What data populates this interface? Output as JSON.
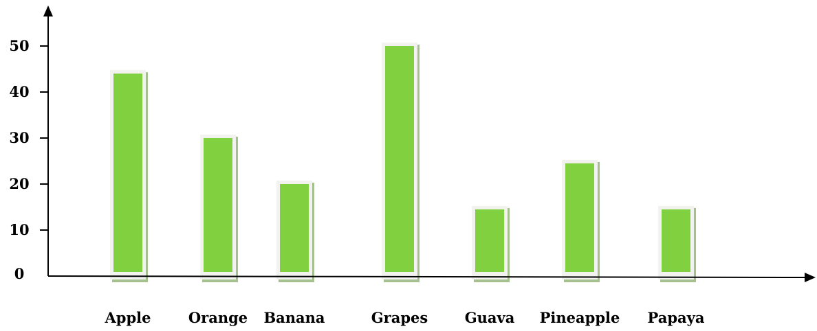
{
  "chart_data": {
    "type": "bar",
    "categories": [
      "Apple",
      "Orange",
      "Banana",
      "Grapes",
      "Guava",
      "Pineapple",
      "Papaya"
    ],
    "values": [
      44,
      30,
      20,
      50,
      14.5,
      24.5,
      14.5
    ],
    "yticks": [
      0,
      10,
      20,
      30,
      40,
      50
    ],
    "ylim": [
      0,
      58
    ],
    "grid": false,
    "legend": "none",
    "bar_color": "#80d040",
    "bar_frame_color": "#f2f2ee",
    "bar_shadow_color": "#a6bf8e",
    "axis_color": "#000000"
  }
}
